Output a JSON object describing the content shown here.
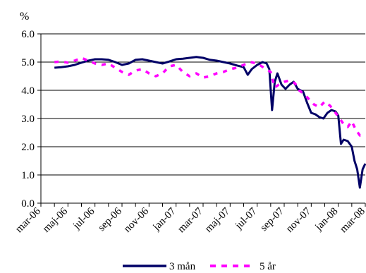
{
  "chart_data": {
    "type": "line",
    "title": "",
    "ylabel": "%",
    "xlabel": "",
    "ylim": [
      0,
      6
    ],
    "yticks": [
      "0.0",
      "1.0",
      "2.0",
      "3.0",
      "4.0",
      "5.0",
      "6.0"
    ],
    "xlim": [
      0,
      24
    ],
    "xtick_labels": [
      "mar-06",
      "maj-06",
      "jul-06",
      "sep-06",
      "nov-06",
      "jan-07",
      "mar-07",
      "maj-07",
      "jul-07",
      "sep-07",
      "nov-07",
      "jan-08",
      "mar-08"
    ],
    "grid": "horizontal",
    "legend_position": "bottom",
    "series": [
      {
        "name": "3 mån",
        "color": "#000066",
        "style": "solid",
        "points": [
          [
            1,
            4.8
          ],
          [
            1.5,
            4.82
          ],
          [
            2,
            4.85
          ],
          [
            2.5,
            4.9
          ],
          [
            3,
            4.98
          ],
          [
            3.5,
            5.05
          ],
          [
            4,
            5.1
          ],
          [
            4.5,
            5.1
          ],
          [
            5,
            5.08
          ],
          [
            5.5,
            5.0
          ],
          [
            6,
            4.9
          ],
          [
            6.5,
            4.95
          ],
          [
            7,
            5.08
          ],
          [
            7.5,
            5.1
          ],
          [
            8,
            5.05
          ],
          [
            8.5,
            5.0
          ],
          [
            9,
            4.95
          ],
          [
            9.5,
            5.02
          ],
          [
            10,
            5.1
          ],
          [
            10.5,
            5.12
          ],
          [
            11,
            5.15
          ],
          [
            11.5,
            5.18
          ],
          [
            12,
            5.15
          ],
          [
            12.5,
            5.08
          ],
          [
            13,
            5.05
          ],
          [
            13.5,
            5.0
          ],
          [
            14,
            4.95
          ],
          [
            14.5,
            4.88
          ],
          [
            15,
            4.82
          ],
          [
            15.3,
            4.55
          ],
          [
            15.6,
            4.75
          ],
          [
            16,
            4.9
          ],
          [
            16.4,
            5.0
          ],
          [
            16.7,
            4.95
          ],
          [
            16.9,
            4.75
          ],
          [
            17.1,
            3.3
          ],
          [
            17.3,
            4.3
          ],
          [
            17.5,
            4.6
          ],
          [
            17.8,
            4.2
          ],
          [
            18.1,
            4.05
          ],
          [
            18.4,
            4.2
          ],
          [
            18.7,
            4.3
          ],
          [
            19,
            4.05
          ],
          [
            19.4,
            3.95
          ],
          [
            19.7,
            3.55
          ],
          [
            20,
            3.2
          ],
          [
            20.3,
            3.15
          ],
          [
            20.6,
            3.05
          ],
          [
            20.9,
            3.0
          ],
          [
            21.2,
            3.2
          ],
          [
            21.5,
            3.3
          ],
          [
            21.8,
            3.25
          ],
          [
            22,
            3.1
          ],
          [
            22.2,
            2.1
          ],
          [
            22.4,
            2.25
          ],
          [
            22.7,
            2.2
          ],
          [
            23,
            2.0
          ],
          [
            23.2,
            1.5
          ],
          [
            23.4,
            1.2
          ],
          [
            23.6,
            0.55
          ],
          [
            23.8,
            1.2
          ],
          [
            24,
            1.4
          ]
        ]
      },
      {
        "name": "5 år",
        "color": "#ff00ff",
        "style": "dashed",
        "points": [
          [
            1,
            5.0
          ],
          [
            1.5,
            5.02
          ],
          [
            2,
            4.98
          ],
          [
            2.5,
            5.05
          ],
          [
            3,
            5.15
          ],
          [
            3.5,
            5.05
          ],
          [
            4,
            4.95
          ],
          [
            4.5,
            4.9
          ],
          [
            5,
            4.95
          ],
          [
            5.5,
            4.8
          ],
          [
            6,
            4.65
          ],
          [
            6.5,
            4.55
          ],
          [
            7,
            4.7
          ],
          [
            7.5,
            4.75
          ],
          [
            8,
            4.6
          ],
          [
            8.5,
            4.5
          ],
          [
            9,
            4.6
          ],
          [
            9.5,
            4.85
          ],
          [
            10,
            4.9
          ],
          [
            10.5,
            4.65
          ],
          [
            11,
            4.5
          ],
          [
            11.5,
            4.6
          ],
          [
            12,
            4.45
          ],
          [
            12.5,
            4.5
          ],
          [
            13,
            4.6
          ],
          [
            13.5,
            4.65
          ],
          [
            14,
            4.75
          ],
          [
            14.5,
            4.8
          ],
          [
            15,
            4.9
          ],
          [
            15.5,
            5.0
          ],
          [
            16,
            4.95
          ],
          [
            16.5,
            4.8
          ],
          [
            17,
            4.65
          ],
          [
            17.3,
            4.1
          ],
          [
            17.6,
            4.2
          ],
          [
            18,
            4.3
          ],
          [
            18.4,
            4.35
          ],
          [
            18.8,
            4.25
          ],
          [
            19.1,
            4.0
          ],
          [
            19.5,
            3.85
          ],
          [
            19.8,
            3.7
          ],
          [
            20.2,
            3.5
          ],
          [
            20.6,
            3.4
          ],
          [
            21,
            3.6
          ],
          [
            21.4,
            3.45
          ],
          [
            21.8,
            3.2
          ],
          [
            22.1,
            3.0
          ],
          [
            22.4,
            2.8
          ],
          [
            22.7,
            2.7
          ],
          [
            23,
            2.9
          ],
          [
            23.3,
            2.6
          ],
          [
            23.6,
            2.4
          ],
          [
            24,
            2.5
          ]
        ]
      }
    ]
  }
}
